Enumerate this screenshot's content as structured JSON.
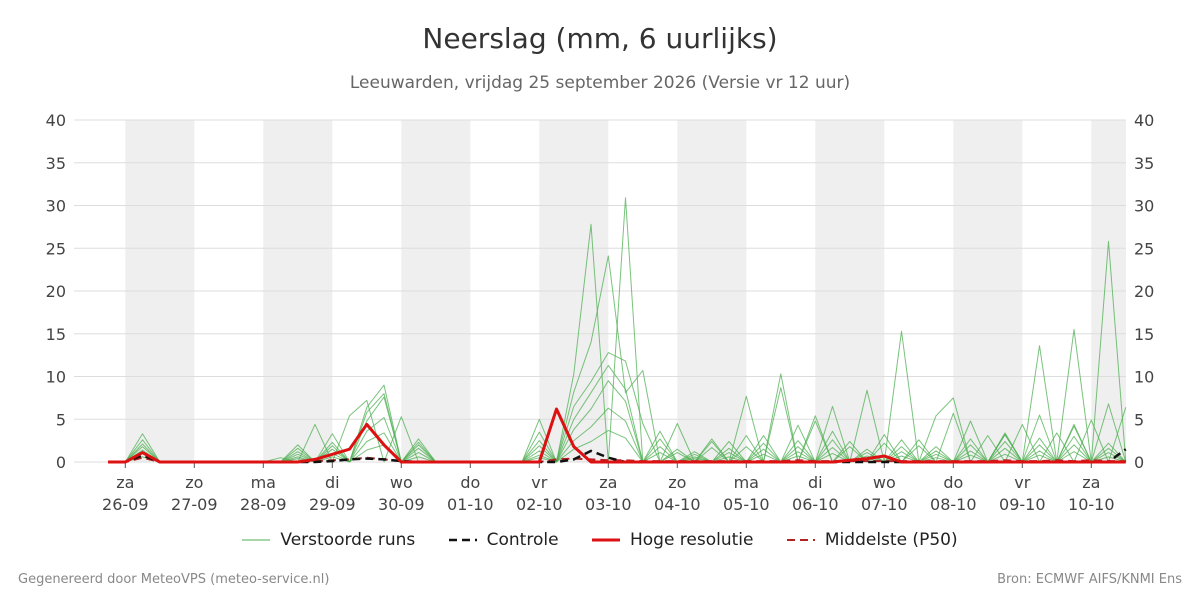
{
  "title": "Neerslag (mm, 6 uurlijks)",
  "subtitle": "Leeuwarden, vrijdag 25 september 2026 (Versie vr 12 uur)",
  "footer": {
    "left": "Gegenereerd door MeteoVPS (meteo-service.nl)",
    "right": "Bron: ECMWF AIFS/KNMI Ens"
  },
  "legend": [
    {
      "label": "Verstoorde runs",
      "color": "#4caf50",
      "style": "thin-solid"
    },
    {
      "label": "Controle",
      "color": "#111111",
      "style": "dashed"
    },
    {
      "label": "Hoge resolutie",
      "color": "#dd1111",
      "style": "solid"
    },
    {
      "label": "Middelste (P50)",
      "color": "#b22222",
      "style": "dashed"
    }
  ],
  "colors": {
    "ensemble": "#4caf50",
    "control": "#111111",
    "hires": "#dd1111",
    "median": "#b22222",
    "weekend_band": "#efefef",
    "grid": "#dddddd"
  },
  "chart_data": {
    "type": "line",
    "xlabel": "",
    "ylabel": "",
    "ylim": [
      0,
      40
    ],
    "yticks": [
      0,
      5,
      10,
      15,
      20,
      25,
      30,
      35,
      40
    ],
    "grid": true,
    "legend_position": "bottom",
    "x_unit": "6-hourly steps from 2026-09-25 18:00",
    "x_ticks": [
      {
        "day": "za",
        "date": "26-09"
      },
      {
        "day": "zo",
        "date": "27-09"
      },
      {
        "day": "ma",
        "date": "28-09"
      },
      {
        "day": "di",
        "date": "29-09"
      },
      {
        "day": "wo",
        "date": "30-09"
      },
      {
        "day": "do",
        "date": "01-10"
      },
      {
        "day": "vr",
        "date": "02-10"
      },
      {
        "day": "za",
        "date": "03-10"
      },
      {
        "day": "zo",
        "date": "04-10"
      },
      {
        "day": "ma",
        "date": "05-10"
      },
      {
        "day": "di",
        "date": "06-10"
      },
      {
        "day": "wo",
        "date": "07-10"
      },
      {
        "day": "do",
        "date": "08-10"
      },
      {
        "day": "vr",
        "date": "09-10"
      },
      {
        "day": "za",
        "date": "10-10"
      }
    ],
    "series": [
      {
        "name": "Verstoorde runs",
        "values": [
          0,
          0,
          3.3,
          0,
          0,
          0,
          0,
          0,
          0,
          0,
          0.5,
          0,
          4.4,
          0,
          5.4,
          7.2,
          0,
          5.3,
          0,
          0,
          0,
          0,
          0,
          0,
          0,
          5,
          0,
          10.3,
          27.8,
          0,
          30.9,
          0,
          0,
          4.5,
          0,
          2.7,
          0,
          7.7,
          0,
          0,
          4.3,
          0,
          6.5,
          0,
          8.4,
          0,
          15.3,
          0,
          5.4,
          7.5,
          0,
          0,
          3.2,
          0,
          13.6,
          0,
          15.5,
          0,
          25.8,
          0,
          9.1,
          0,
          5.2,
          0,
          6.3,
          0,
          7.3,
          0,
          8.6
        ]
      },
      {
        "name": "Verstoorde runs",
        "values": [
          0,
          0,
          2.6,
          0,
          0,
          0,
          0,
          0,
          0,
          0,
          0,
          2,
          0,
          3.3,
          0,
          6.4,
          9,
          0,
          2.7,
          0,
          0,
          0,
          0,
          0,
          0,
          3.5,
          0,
          8.2,
          14,
          24.1,
          8.1,
          10.7,
          0,
          1.5,
          0,
          2.4,
          0,
          1.8,
          0,
          10.3,
          0,
          5.4,
          0,
          2.4,
          0,
          3.2,
          0,
          2.6,
          0,
          0,
          4.8,
          0,
          3.2,
          0,
          5.5,
          0,
          4.4,
          0,
          6.8,
          0,
          4,
          0,
          13,
          0,
          2,
          0,
          13.3,
          0,
          5.3
        ]
      },
      {
        "name": "Verstoorde runs",
        "values": [
          0,
          0,
          2.1,
          0,
          0,
          0,
          0,
          0,
          0,
          0,
          0,
          1.6,
          0,
          2.3,
          0,
          5.8,
          8,
          0,
          2.3,
          0,
          0,
          0,
          0,
          0,
          0,
          2.5,
          0,
          6.5,
          9.4,
          12.8,
          11.8,
          4.5,
          0,
          1.1,
          0,
          1.7,
          0,
          3.1,
          0,
          8.7,
          0,
          4.8,
          0,
          1.8,
          0,
          2.2,
          0,
          1.9,
          0,
          5.7,
          0,
          3.1,
          0,
          4.4,
          0,
          3.4,
          0,
          4.9,
          0,
          6.4,
          0,
          3.2,
          0,
          4,
          0,
          5.9,
          0,
          4,
          0
        ]
      },
      {
        "name": "Verstoorde runs",
        "values": [
          0,
          0,
          1.8,
          0,
          0,
          0,
          0,
          0,
          0,
          0,
          0,
          1.2,
          0,
          1.9,
          0,
          4.8,
          7.6,
          0,
          2,
          0,
          0,
          0,
          0,
          0,
          0,
          1.9,
          0,
          5,
          8.1,
          11.3,
          8.5,
          0,
          3.6,
          0,
          1.2,
          0,
          2.4,
          0,
          3.1,
          0,
          2.5,
          0,
          3.6,
          0,
          1.5,
          0,
          2.6,
          0,
          1.8,
          0,
          2.7,
          0,
          3.4,
          0,
          2.8,
          0,
          4.2,
          0,
          2.2,
          0,
          3.5,
          0,
          3.8,
          0,
          4.6,
          0,
          2.6,
          0,
          3.9
        ]
      },
      {
        "name": "Verstoorde runs",
        "values": [
          0,
          0,
          1.4,
          0,
          0,
          0,
          0,
          0,
          0,
          0,
          0,
          0.9,
          0,
          1.5,
          0,
          3.6,
          5.2,
          0,
          1.6,
          0,
          0,
          0,
          0,
          0,
          0,
          1.3,
          0,
          3.8,
          6.2,
          9.5,
          7.1,
          0,
          2.7,
          0,
          0.9,
          0,
          1.6,
          0,
          2.2,
          0,
          1.8,
          0,
          2.6,
          0,
          1.1,
          0,
          1.8,
          0,
          1.3,
          0,
          2,
          0,
          2.4,
          0,
          2,
          0,
          3,
          0,
          1.6,
          0,
          2.5,
          0,
          2.7,
          0,
          3.2,
          0,
          1.9,
          0,
          2.8
        ]
      },
      {
        "name": "Verstoorde runs",
        "values": [
          0,
          0,
          1,
          0,
          0,
          0,
          0,
          0,
          0,
          0,
          0,
          0.6,
          0,
          1,
          0,
          2.4,
          3.4,
          0,
          1.1,
          0,
          0,
          0,
          0,
          0,
          0,
          0.8,
          0,
          2.5,
          4.1,
          6.3,
          4.8,
          0,
          1.8,
          0,
          0.6,
          0,
          1.1,
          0,
          1.5,
          0,
          1.2,
          0,
          1.7,
          0,
          0.7,
          0,
          1.2,
          0,
          0.9,
          0,
          1.3,
          0,
          1.6,
          0,
          1.3,
          0,
          2,
          0,
          1.1,
          0,
          1.7,
          0,
          1.8,
          0,
          2.2,
          0,
          1.3,
          0,
          1.9
        ]
      },
      {
        "name": "Verstoorde runs",
        "values": [
          0,
          0,
          0.6,
          0,
          0,
          0,
          0,
          0,
          0,
          0,
          0,
          0.4,
          0,
          0.6,
          0,
          1.4,
          2,
          0,
          0.6,
          0,
          0,
          0,
          0,
          0,
          0,
          0.5,
          0,
          1.5,
          2.4,
          3.7,
          2.8,
          0,
          1.1,
          0,
          0.4,
          0,
          0.6,
          0,
          0.9,
          0,
          0.7,
          0,
          1,
          0,
          0.4,
          0,
          0.7,
          0,
          0.5,
          0,
          0.8,
          0,
          0.9,
          0,
          0.8,
          0,
          1.2,
          0,
          0.6,
          0,
          1,
          0,
          1.1,
          0,
          1.3,
          0,
          0.8,
          0,
          1.1
        ]
      },
      {
        "name": "Controle",
        "values": [
          0,
          0,
          0.8,
          0,
          0,
          0,
          0,
          0,
          0,
          0,
          0,
          0,
          0,
          0.1,
          0.3,
          0.4,
          0.3,
          0.1,
          0,
          0,
          0,
          0,
          0,
          0,
          0,
          0,
          0,
          0.3,
          1.3,
          0.5,
          0,
          0,
          0,
          0,
          0,
          0,
          0,
          0,
          0,
          0,
          0,
          0,
          0,
          0,
          0,
          0,
          0,
          0,
          0,
          0,
          0,
          0,
          0,
          0,
          0,
          0,
          0,
          0,
          0,
          1.5,
          0,
          0,
          0,
          0,
          0,
          0,
          0,
          0,
          0.3
        ]
      },
      {
        "name": "Hoge resolutie",
        "values": [
          0,
          0,
          1.1,
          0,
          0,
          0,
          0,
          0,
          0,
          0,
          0,
          0,
          0.3,
          0.9,
          1.5,
          4.4,
          2,
          0,
          0,
          0,
          0,
          0,
          0,
          0,
          0,
          0,
          6.2,
          1.8,
          0,
          0,
          0,
          0,
          0,
          0,
          0,
          0,
          0,
          0,
          0,
          0,
          0,
          0,
          0,
          0.2,
          0.4,
          0.7,
          0,
          0,
          0,
          0,
          0,
          0,
          0,
          0,
          0,
          0,
          0,
          0,
          0,
          0,
          0,
          0,
          0,
          0,
          0,
          0,
          0,
          0,
          0
        ]
      },
      {
        "name": "Middelste (P50)",
        "values": [
          0,
          0,
          0.5,
          0,
          0,
          0,
          0,
          0,
          0,
          0,
          0,
          0,
          0.1,
          0.2,
          0.3,
          0.5,
          0.3,
          0.1,
          0,
          0,
          0,
          0,
          0,
          0,
          0,
          0,
          0.3,
          0.4,
          0.3,
          0.2,
          0.2,
          0.1,
          0.1,
          0.1,
          0.1,
          0.1,
          0.1,
          0.1,
          0.1,
          0.1,
          0.2,
          0.1,
          0.1,
          0.1,
          0.1,
          0.1,
          0.1,
          0.1,
          0.1,
          0.1,
          0.1,
          0.1,
          0.2,
          0.1,
          0.1,
          0.2,
          0.1,
          0.2,
          0.1,
          0.1,
          0.2,
          0.1,
          0.1,
          0.2,
          0.2,
          0.1,
          0.1,
          0.2,
          0.2
        ]
      }
    ]
  }
}
